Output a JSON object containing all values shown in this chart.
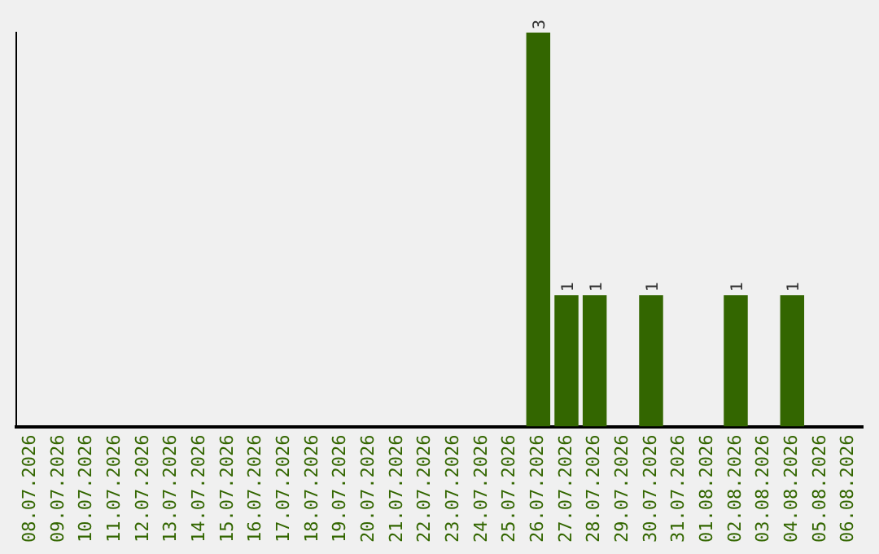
{
  "chart_data": {
    "type": "bar",
    "categories": [
      "08.07.2026",
      "09.07.2026",
      "10.07.2026",
      "11.07.2026",
      "12.07.2026",
      "13.07.2026",
      "14.07.2026",
      "15.07.2026",
      "16.07.2026",
      "17.07.2026",
      "18.07.2026",
      "19.07.2026",
      "20.07.2026",
      "21.07.2026",
      "22.07.2026",
      "23.07.2026",
      "24.07.2026",
      "25.07.2026",
      "26.07.2026",
      "27.07.2026",
      "28.07.2026",
      "29.07.2026",
      "30.07.2026",
      "31.07.2026",
      "01.08.2026",
      "02.08.2026",
      "03.08.2026",
      "04.08.2026",
      "05.08.2026",
      "06.08.2026"
    ],
    "values": [
      null,
      null,
      null,
      null,
      null,
      null,
      null,
      null,
      null,
      null,
      null,
      null,
      null,
      null,
      null,
      null,
      null,
      null,
      3,
      1,
      1,
      null,
      1,
      null,
      null,
      1,
      null,
      1,
      null,
      null
    ],
    "data_labels": true,
    "color": "#336600",
    "ylim": [
      0,
      3
    ],
    "tick_labels": "x",
    "grid": false,
    "legend": false
  }
}
